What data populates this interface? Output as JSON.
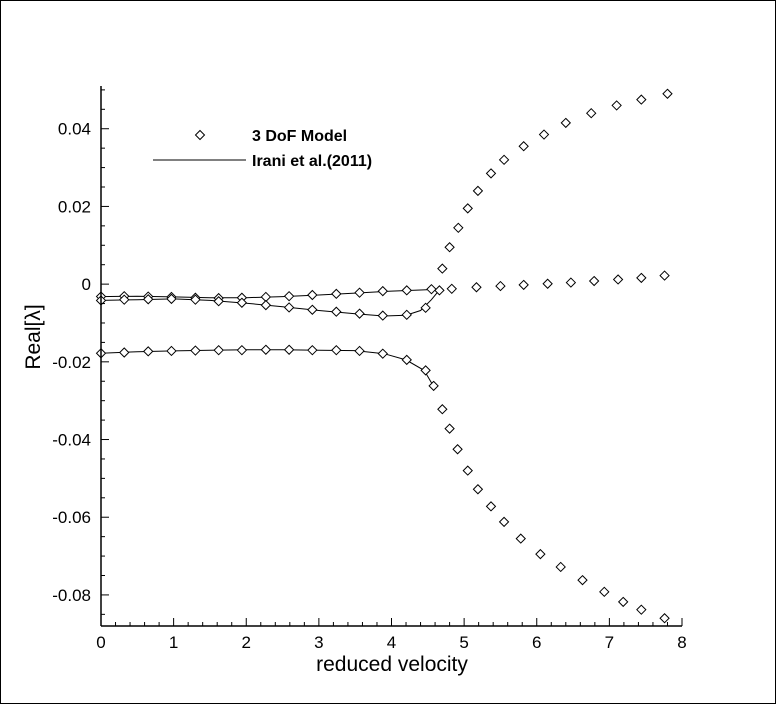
{
  "chart_data": {
    "type": "scatter",
    "xlabel": "reduced velocity",
    "ylabel": "Real[λ]",
    "xlim": [
      0,
      8
    ],
    "ylim": [
      -0.088,
      0.051
    ],
    "x_ticks": [
      0,
      1,
      2,
      3,
      4,
      5,
      6,
      7,
      8
    ],
    "y_ticks": [
      -0.08,
      -0.06,
      -0.04,
      -0.02,
      0,
      0.02,
      0.04
    ],
    "x_tick_labels": [
      "0",
      "1",
      "2",
      "3",
      "4",
      "5",
      "6",
      "7",
      "8"
    ],
    "y_tick_labels": [
      "-0.08",
      "-0.06",
      "-0.04",
      "-0.02",
      "0",
      "0.02",
      "0.04"
    ],
    "grid": false,
    "legend_position": "top-left",
    "legend": [
      {
        "label": "3 DoF Model",
        "marker": "diamond"
      },
      {
        "label": "Irani et al.(2011)",
        "marker": "line"
      }
    ],
    "series": [
      {
        "name": "3 DoF Model",
        "kind": "markers",
        "points": [
          [
            0,
            -0.0032
          ],
          [
            0.32,
            -0.0031
          ],
          [
            0.65,
            -0.0032
          ],
          [
            0.97,
            -0.0033
          ],
          [
            1.3,
            -0.0035
          ],
          [
            1.62,
            -0.0036
          ],
          [
            1.94,
            -0.0035
          ],
          [
            2.27,
            -0.0033
          ],
          [
            2.59,
            -0.0031
          ],
          [
            2.91,
            -0.0028
          ],
          [
            3.24,
            -0.0025
          ],
          [
            3.56,
            -0.0022
          ],
          [
            3.88,
            -0.0018
          ],
          [
            4.21,
            -0.0016
          ],
          [
            4.55,
            -0.0013
          ],
          [
            0,
            -0.0042
          ],
          [
            0.32,
            -0.004
          ],
          [
            0.65,
            -0.0039
          ],
          [
            0.97,
            -0.0038
          ],
          [
            1.3,
            -0.004
          ],
          [
            1.62,
            -0.0044
          ],
          [
            1.94,
            -0.0048
          ],
          [
            2.27,
            -0.0054
          ],
          [
            2.59,
            -0.006
          ],
          [
            2.91,
            -0.0066
          ],
          [
            3.24,
            -0.0071
          ],
          [
            3.56,
            -0.0076
          ],
          [
            3.88,
            -0.0081
          ],
          [
            4.21,
            -0.0079
          ],
          [
            4.47,
            -0.0061
          ],
          [
            4.66,
            -0.0016
          ],
          [
            4.83,
            -0.0012
          ],
          [
            5.17,
            -0.0008
          ],
          [
            5.5,
            -0.0005
          ],
          [
            5.82,
            -0.0002
          ],
          [
            6.15,
            0.0001
          ],
          [
            6.47,
            0.0004
          ],
          [
            6.79,
            0.0008
          ],
          [
            7.12,
            0.0012
          ],
          [
            7.44,
            0.0016
          ],
          [
            7.76,
            0.0022
          ],
          [
            0,
            -0.0178
          ],
          [
            0.32,
            -0.0176
          ],
          [
            0.65,
            -0.0173
          ],
          [
            0.97,
            -0.0172
          ],
          [
            1.3,
            -0.0171
          ],
          [
            1.62,
            -0.017
          ],
          [
            1.94,
            -0.017
          ],
          [
            2.27,
            -0.0169
          ],
          [
            2.59,
            -0.0169
          ],
          [
            2.91,
            -0.017
          ],
          [
            3.24,
            -0.017
          ],
          [
            3.56,
            -0.0172
          ],
          [
            3.88,
            -0.0179
          ],
          [
            4.21,
            -0.0195
          ],
          [
            4.47,
            -0.0222
          ],
          [
            4.58,
            -0.0262
          ],
          [
            4.7,
            0.004
          ],
          [
            4.8,
            0.0095
          ],
          [
            4.92,
            0.0145
          ],
          [
            5.05,
            0.0195
          ],
          [
            5.19,
            0.024
          ],
          [
            5.37,
            0.0285
          ],
          [
            5.55,
            0.032
          ],
          [
            5.82,
            0.0355
          ],
          [
            6.1,
            0.0385
          ],
          [
            6.4,
            0.0415
          ],
          [
            6.75,
            0.044
          ],
          [
            7.1,
            0.046
          ],
          [
            7.44,
            0.0475
          ],
          [
            7.8,
            0.049
          ],
          [
            4.7,
            -0.0322
          ],
          [
            4.8,
            -0.0372
          ],
          [
            4.91,
            -0.0425
          ],
          [
            5.05,
            -0.048
          ],
          [
            5.19,
            -0.0528
          ],
          [
            5.37,
            -0.0572
          ],
          [
            5.55,
            -0.0612
          ],
          [
            5.78,
            -0.0655
          ],
          [
            6.05,
            -0.0695
          ],
          [
            6.33,
            -0.0728
          ],
          [
            6.63,
            -0.0762
          ],
          [
            6.93,
            -0.0792
          ],
          [
            7.19,
            -0.0818
          ],
          [
            7.44,
            -0.0838
          ],
          [
            7.76,
            -0.086
          ]
        ]
      },
      {
        "name": "Irani et al.(2011)",
        "kind": "line",
        "curves": [
          [
            [
              0,
              -0.0032
            ],
            [
              0.5,
              -0.0031
            ],
            [
              1.0,
              -0.0033
            ],
            [
              1.5,
              -0.0035
            ],
            [
              2.0,
              -0.0035
            ],
            [
              2.5,
              -0.0032
            ],
            [
              3.0,
              -0.0028
            ],
            [
              3.5,
              -0.0023
            ],
            [
              4.0,
              -0.0018
            ],
            [
              4.4,
              -0.0015
            ],
            [
              4.65,
              -0.0013
            ]
          ],
          [
            [
              0,
              -0.0042
            ],
            [
              0.5,
              -0.004
            ],
            [
              1.0,
              -0.0038
            ],
            [
              1.5,
              -0.0042
            ],
            [
              2.0,
              -0.0049
            ],
            [
              2.5,
              -0.0058
            ],
            [
              3.0,
              -0.0068
            ],
            [
              3.5,
              -0.0076
            ],
            [
              3.9,
              -0.0082
            ],
            [
              4.2,
              -0.008
            ],
            [
              4.4,
              -0.0068
            ],
            [
              4.55,
              -0.004
            ],
            [
              4.66,
              -0.0015
            ]
          ],
          [
            [
              0,
              -0.0178
            ],
            [
              0.5,
              -0.0174
            ],
            [
              1.0,
              -0.0172
            ],
            [
              1.5,
              -0.017
            ],
            [
              2.0,
              -0.0169
            ],
            [
              2.5,
              -0.0169
            ],
            [
              3.0,
              -0.017
            ],
            [
              3.5,
              -0.0171
            ],
            [
              3.9,
              -0.0179
            ],
            [
              4.2,
              -0.0195
            ],
            [
              4.45,
              -0.0222
            ],
            [
              4.6,
              -0.027
            ]
          ]
        ]
      }
    ]
  }
}
